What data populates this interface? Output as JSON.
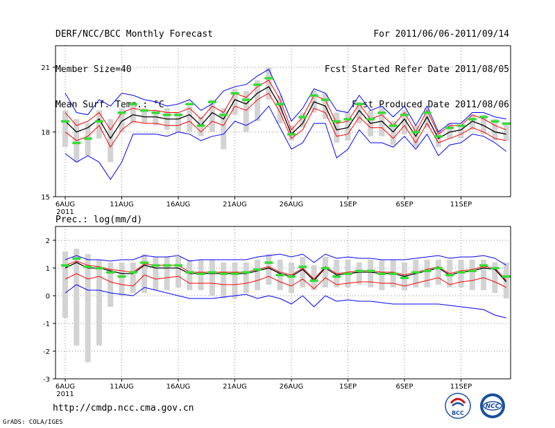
{
  "header": {
    "title": "DERF/NCC/BCC Monthly Forecast",
    "member_size": "Member Size=40",
    "variable": "Mean Surf. Temp.: °C",
    "period": "For 2011/06/06-2011/09/14",
    "start_date": "Fcst Started Refer Date 2011/08/05",
    "produced_date": "Fcst Produced Date 2011/08/06"
  },
  "footer": {
    "url": "http://cmdp.ncc.cma.gov.cn",
    "grads": "GrADS: COLA/IGES",
    "logo_bcc": "BCC",
    "logo_ncc": "NCC"
  },
  "colors": {
    "ensemble_mean": "#000000",
    "spread": "#ff0000",
    "extremes": "#0000ff",
    "observed": "#33dd33",
    "box": "#d3d3d3",
    "grid": "#888888"
  },
  "chart_data": [
    {
      "type": "line",
      "title": "Mean Surf. Temp.: °C",
      "x_ticks": [
        "6AUG",
        "11AUG",
        "16AUG",
        "21AUG",
        "26AUG",
        "1SEP",
        "6SEP",
        "11SEP"
      ],
      "x_tick_sub": "2011",
      "ylim": [
        15,
        22
      ],
      "y_ticks": [
        15,
        18,
        21
      ],
      "days": 40,
      "series": [
        {
          "name": "ensemble mean",
          "values": [
            18.5,
            18.0,
            18.2,
            18.6,
            17.7,
            18.5,
            18.8,
            18.7,
            18.7,
            18.6,
            18.6,
            18.8,
            18.3,
            18.9,
            18.6,
            19.5,
            19.3,
            19.8,
            20.1,
            19.2,
            17.9,
            18.4,
            19.4,
            19.2,
            18.1,
            18.2,
            19.0,
            18.4,
            18.5,
            18.0,
            18.6,
            17.8,
            18.7,
            17.7,
            18.0,
            18.1,
            18.5,
            18.3,
            18.0,
            17.9
          ]
        },
        {
          "name": "mean + std",
          "values": [
            18.9,
            18.3,
            18.5,
            18.9,
            18.1,
            18.9,
            19.1,
            19.0,
            19.0,
            18.9,
            18.9,
            19.1,
            18.6,
            19.2,
            18.9,
            19.8,
            19.6,
            20.1,
            20.4,
            19.5,
            18.1,
            18.7,
            19.7,
            19.5,
            18.4,
            18.5,
            19.3,
            18.6,
            18.8,
            18.3,
            18.9,
            18.0,
            19.0,
            17.9,
            18.3,
            18.3,
            18.8,
            18.6,
            18.3,
            18.1
          ]
        },
        {
          "name": "mean - std",
          "values": [
            18.0,
            17.6,
            17.8,
            18.3,
            17.3,
            18.1,
            18.5,
            18.4,
            18.4,
            18.3,
            18.3,
            18.5,
            18.0,
            18.5,
            18.3,
            19.2,
            19.0,
            19.5,
            19.8,
            18.9,
            17.7,
            18.1,
            19.1,
            18.9,
            17.8,
            17.9,
            18.7,
            18.2,
            18.2,
            17.7,
            18.3,
            17.5,
            18.4,
            17.5,
            17.7,
            17.9,
            18.2,
            18.0,
            17.7,
            17.6
          ]
        },
        {
          "name": "ensemble max",
          "values": [
            19.8,
            18.9,
            18.8,
            19.5,
            19.2,
            19.8,
            19.7,
            19.5,
            19.4,
            19.2,
            19.3,
            19.5,
            19.0,
            19.3,
            19.9,
            20.1,
            20.2,
            20.6,
            20.9,
            19.8,
            18.5,
            19.1,
            20.0,
            19.8,
            19.0,
            18.9,
            19.7,
            19.0,
            19.2,
            18.7,
            19.2,
            18.3,
            19.2,
            18.0,
            18.4,
            18.4,
            18.9,
            18.9,
            18.7,
            18.6
          ]
        },
        {
          "name": "ensemble min",
          "values": [
            17.0,
            16.6,
            16.9,
            16.6,
            15.8,
            16.6,
            17.9,
            17.9,
            17.9,
            17.8,
            18.0,
            17.9,
            17.6,
            17.8,
            17.9,
            18.5,
            18.3,
            18.6,
            19.2,
            18.2,
            17.2,
            17.5,
            18.4,
            18.4,
            16.8,
            17.2,
            18.1,
            17.5,
            17.5,
            17.3,
            17.8,
            17.2,
            17.9,
            16.9,
            17.4,
            17.5,
            17.9,
            17.8,
            17.5,
            17.1
          ]
        },
        {
          "name": "observed",
          "values": [
            18.5,
            17.5,
            17.7,
            18.5,
            null,
            18.9,
            19.3,
            19.0,
            18.9,
            18.8,
            18.8,
            19.3,
            18.3,
            19.4,
            18.8,
            19.8,
            19.5,
            20.2,
            20.5,
            19.3,
            17.9,
            18.7,
            19.7,
            19.5,
            18.5,
            18.6,
            19.3,
            18.6,
            18.9,
            18.3,
            18.8,
            18.0,
            18.9,
            17.8,
            18.2,
            18.3,
            18.6,
            18.7,
            18.5,
            18.4
          ]
        }
      ],
      "box_low": [
        17.3,
        16.6,
        16.9,
        17.7,
        16.6,
        18.0,
        18.4,
        18.4,
        18.3,
        18.1,
        18.0,
        18.0,
        17.8,
        18.0,
        17.2,
        18.8,
        18.0,
        18.5,
        19.5,
        18.4,
        17.6,
        18.2,
        18.9,
        18.6,
        17.5,
        17.6,
        18.4,
        17.8,
        17.8,
        17.4,
        17.9,
        17.3,
        18.2,
        17.3,
        17.7,
        17.7,
        18.1,
        17.9,
        17.6,
        17.6
      ],
      "box_high": [
        19.0,
        18.6,
        18.4,
        19.0,
        18.6,
        19.1,
        19.3,
        19.1,
        19.0,
        19.1,
        18.9,
        19.2,
        18.7,
        19.5,
        19.1,
        20.0,
        19.9,
        20.4,
        21.0,
        19.7,
        18.3,
        18.9,
        19.9,
        19.8,
        18.9,
        18.9,
        19.4,
        19.0,
        19.2,
        18.5,
        19.0,
        18.3,
        19.1,
        18.1,
        18.4,
        18.3,
        18.8,
        18.8,
        18.6,
        18.4
      ]
    },
    {
      "type": "line",
      "title": "Prec.: log(mm/d)",
      "x_ticks": [
        "6AUG",
        "11AUG",
        "16AUG",
        "21AUG",
        "26AUG",
        "1SEP",
        "6SEP",
        "11SEP"
      ],
      "x_tick_sub": "2011",
      "ylim": [
        -3,
        2.5
      ],
      "y_ticks": [
        -3,
        -2,
        -1,
        0,
        1,
        2
      ],
      "days": 40,
      "series": [
        {
          "name": "ensemble mean",
          "values": [
            1.0,
            1.2,
            1.0,
            1.0,
            0.9,
            0.8,
            0.8,
            1.1,
            1.0,
            1.0,
            1.0,
            0.8,
            0.8,
            0.8,
            0.8,
            0.8,
            0.8,
            0.9,
            1.0,
            0.8,
            0.7,
            0.95,
            0.55,
            1.0,
            0.75,
            0.8,
            0.85,
            0.85,
            0.8,
            0.8,
            0.7,
            0.8,
            0.9,
            1.0,
            0.75,
            0.85,
            0.9,
            1.0,
            0.95,
            0.5
          ]
        },
        {
          "name": "mean + std",
          "values": [
            1.1,
            1.25,
            1.1,
            1.05,
            0.95,
            0.9,
            0.85,
            1.15,
            1.1,
            1.1,
            1.1,
            0.85,
            0.85,
            0.85,
            0.85,
            0.85,
            0.85,
            0.95,
            1.05,
            0.85,
            0.75,
            1.0,
            0.6,
            1.05,
            0.8,
            0.85,
            0.9,
            0.9,
            0.85,
            0.85,
            0.75,
            0.85,
            0.95,
            1.05,
            0.8,
            0.9,
            0.95,
            1.05,
            1.0,
            0.55
          ]
        },
        {
          "name": "mean - std",
          "values": [
            0.6,
            0.8,
            0.6,
            0.7,
            0.5,
            0.4,
            0.35,
            0.75,
            0.6,
            0.65,
            0.7,
            0.45,
            0.45,
            0.45,
            0.4,
            0.4,
            0.45,
            0.55,
            0.7,
            0.5,
            0.35,
            0.6,
            0.25,
            0.65,
            0.4,
            0.45,
            0.5,
            0.5,
            0.45,
            0.45,
            0.35,
            0.45,
            0.55,
            0.65,
            0.4,
            0.5,
            0.55,
            0.65,
            0.5,
            0.3
          ]
        },
        {
          "name": "ensemble max",
          "values": [
            1.3,
            1.45,
            1.3,
            1.3,
            1.25,
            1.3,
            1.3,
            1.45,
            1.4,
            1.4,
            1.45,
            1.25,
            1.3,
            1.3,
            1.3,
            1.3,
            1.3,
            1.4,
            1.45,
            1.5,
            1.4,
            1.5,
            1.2,
            1.5,
            1.35,
            1.4,
            1.35,
            1.35,
            1.3,
            1.3,
            1.3,
            1.35,
            1.4,
            1.45,
            1.35,
            1.4,
            1.4,
            1.45,
            1.35,
            1.1
          ]
        },
        {
          "name": "ensemble min",
          "values": [
            0.1,
            0.4,
            0.2,
            0.2,
            0.1,
            0.05,
            0.0,
            0.3,
            0.2,
            0.1,
            0.0,
            -0.1,
            -0.1,
            -0.1,
            -0.05,
            0.0,
            0.05,
            -0.1,
            0.0,
            -0.1,
            -0.3,
            0.0,
            -0.4,
            0.0,
            -0.2,
            -0.15,
            -0.2,
            -0.2,
            -0.25,
            -0.3,
            -0.3,
            -0.3,
            -0.3,
            -0.3,
            -0.35,
            -0.4,
            -0.45,
            -0.5,
            -0.7,
            -0.8
          ]
        },
        {
          "name": "observed",
          "values": [
            1.1,
            1.35,
            1.05,
            1.0,
            0.85,
            0.7,
            0.85,
            1.2,
            1.1,
            1.1,
            1.1,
            0.85,
            0.8,
            0.85,
            0.8,
            0.8,
            0.85,
            0.95,
            1.2,
            0.75,
            0.7,
            1.05,
            0.55,
            1.0,
            0.7,
            0.8,
            0.9,
            0.9,
            0.8,
            0.8,
            0.65,
            0.85,
            0.9,
            1.0,
            0.75,
            0.85,
            0.9,
            1.1,
            1.0,
            0.7
          ]
        }
      ],
      "box_low": [
        -0.8,
        -1.8,
        -2.4,
        -1.8,
        -0.4,
        0.0,
        0.1,
        0.1,
        0.2,
        0.2,
        0.3,
        0.2,
        0.2,
        0.0,
        -0.1,
        -0.1,
        0.1,
        0.2,
        0.4,
        0.2,
        0.1,
        0.3,
        0.2,
        0.3,
        0.3,
        0.3,
        0.4,
        0.3,
        0.2,
        0.3,
        0.2,
        0.3,
        0.3,
        0.4,
        0.3,
        0.3,
        0.2,
        0.2,
        0.1,
        -0.1
      ],
      "box_high": [
        1.6,
        1.7,
        1.5,
        1.3,
        1.2,
        1.2,
        1.2,
        1.5,
        1.4,
        1.4,
        1.4,
        1.3,
        1.3,
        1.3,
        1.2,
        1.2,
        1.2,
        1.3,
        1.5,
        1.3,
        1.2,
        1.4,
        1.1,
        1.4,
        1.3,
        1.3,
        1.2,
        1.3,
        1.3,
        1.3,
        1.2,
        1.3,
        1.3,
        1.3,
        1.3,
        1.3,
        1.3,
        1.3,
        1.2,
        1.2
      ]
    }
  ]
}
